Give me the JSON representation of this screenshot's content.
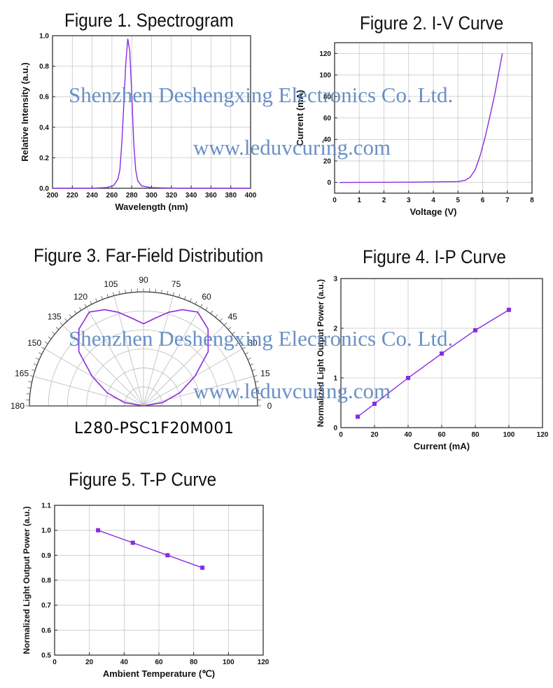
{
  "accent_color": "#8a2be2",
  "watermarks": {
    "company": "Shenzhen Deshengxing Electronics Co. Ltd.",
    "url": "www.leduvcuring.com",
    "color": "#5a86c0"
  },
  "fig3_model": "L280-PSC1F20M001",
  "chart_data": [
    {
      "type": "line",
      "title": "Figure 1. Spectrogram",
      "xlabel": "Wavelength (nm)",
      "ylabel": "Relative Intensity (a.u.)",
      "xlim": [
        200,
        400
      ],
      "ylim": [
        0,
        1.0
      ],
      "xticks": [
        200,
        220,
        240,
        260,
        280,
        300,
        320,
        340,
        360,
        380,
        400
      ],
      "yticks": [
        0.0,
        0.2,
        0.4,
        0.6,
        0.8,
        1.0
      ],
      "grid": true,
      "series": [
        {
          "x": [
            200,
            240,
            255,
            262,
            266,
            268,
            270,
            272,
            274,
            276,
            278,
            280,
            282,
            284,
            286,
            290,
            300,
            330,
            400
          ],
          "y": [
            0.0,
            0.0,
            0.005,
            0.02,
            0.06,
            0.12,
            0.3,
            0.55,
            0.82,
            0.98,
            0.9,
            0.62,
            0.3,
            0.12,
            0.05,
            0.015,
            0.004,
            0.0,
            0.0
          ]
        }
      ]
    },
    {
      "type": "line",
      "title": "Figure 2. I-V Curve",
      "xlabel": "Voltage (V)",
      "ylabel": "Current (mA)",
      "xlim": [
        0,
        8
      ],
      "ylim": [
        -10,
        130
      ],
      "xticks": [
        0,
        1,
        2,
        3,
        4,
        5,
        6,
        7,
        8
      ],
      "yticks": [
        0,
        20,
        40,
        60,
        80,
        100,
        120
      ],
      "grid": true,
      "series": [
        {
          "x": [
            0.2,
            3.0,
            5.0,
            5.3,
            5.5,
            5.7,
            5.9,
            6.1,
            6.3,
            6.5,
            6.7,
            6.8
          ],
          "y": [
            0,
            0.2,
            0.8,
            2,
            5,
            12,
            25,
            42,
            62,
            83,
            108,
            120
          ]
        }
      ]
    },
    {
      "type": "polar",
      "title": "Figure 3. Far-Field Distribution",
      "angle_labels": [
        "180",
        "165",
        "150",
        "135",
        "120",
        "105",
        "90",
        "75",
        "60",
        "45",
        "30",
        "15",
        "0"
      ],
      "angles": [
        0,
        15,
        30,
        45,
        60,
        75,
        90,
        105,
        120,
        135,
        150,
        165,
        180
      ],
      "grid": true,
      "series": [
        {
          "angle": [
            0,
            10,
            20,
            30,
            40,
            50,
            60,
            68,
            75,
            82,
            90,
            98,
            105,
            112,
            120,
            130,
            140,
            150,
            160,
            170,
            180
          ],
          "r": [
            0.0,
            0.17,
            0.34,
            0.52,
            0.74,
            0.88,
            0.95,
            0.91,
            0.85,
            0.78,
            0.72,
            0.78,
            0.85,
            0.91,
            0.95,
            0.88,
            0.74,
            0.52,
            0.34,
            0.17,
            0.0
          ]
        }
      ]
    },
    {
      "type": "line",
      "title": "Figure 4. I-P Curve",
      "xlabel": "Current (mA)",
      "ylabel": "Normalized Light Output Power (a.u.)",
      "xlim": [
        0,
        120
      ],
      "ylim": [
        0,
        3
      ],
      "xticks": [
        0,
        20,
        40,
        60,
        80,
        100,
        120
      ],
      "yticks": [
        0,
        1,
        2,
        3
      ],
      "grid": true,
      "series": [
        {
          "x": [
            10,
            20,
            40,
            60,
            80,
            100
          ],
          "y": [
            0.22,
            0.48,
            1.0,
            1.49,
            1.96,
            2.37
          ]
        }
      ]
    },
    {
      "type": "line",
      "title": "Figure 5. T-P Curve",
      "xlabel": "Ambient Temperature (℃)",
      "ylabel": "Normalized Light Output Power (a.u.)",
      "xlim": [
        0,
        120
      ],
      "ylim": [
        0.5,
        1.1
      ],
      "xticks": [
        0,
        20,
        40,
        60,
        80,
        100,
        120
      ],
      "yticks": [
        0.5,
        0.6,
        0.7,
        0.8,
        0.9,
        1.0,
        1.1
      ],
      "grid": true,
      "series": [
        {
          "x": [
            25,
            45,
            65,
            85
          ],
          "y": [
            1.0,
            0.95,
            0.9,
            0.85
          ]
        }
      ]
    }
  ]
}
